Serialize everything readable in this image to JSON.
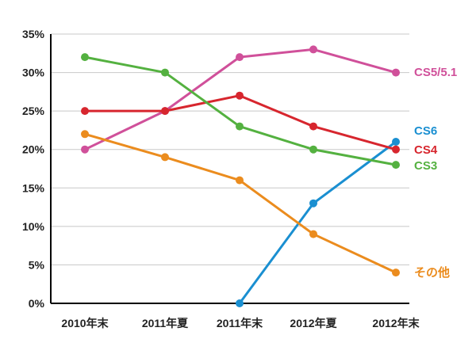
{
  "chart_data": {
    "type": "line",
    "categories": [
      "2010年末",
      "2011年夏",
      "2011年末",
      "2012年夏",
      "2012年末"
    ],
    "ylim": [
      0,
      35
    ],
    "yticks": [
      0,
      5,
      10,
      15,
      20,
      25,
      30,
      35
    ],
    "ytick_labels": [
      "0%",
      "5%",
      "10%",
      "15%",
      "20%",
      "25%",
      "30%",
      "35%"
    ],
    "grid": true,
    "legend": "inline at line ends (right)",
    "series": [
      {
        "name": "CS5/5.1",
        "color": "#d0509a",
        "values": [
          20,
          25,
          32,
          33,
          30
        ]
      },
      {
        "name": "CS6",
        "color": "#1a8fd1",
        "values": [
          null,
          null,
          0,
          13,
          21
        ]
      },
      {
        "name": "CS4",
        "color": "#d7262e",
        "values": [
          25,
          25,
          27,
          23,
          20
        ]
      },
      {
        "name": "CS3",
        "color": "#54b140",
        "values": [
          32,
          30,
          23,
          20,
          18
        ]
      },
      {
        "name": "その他",
        "color": "#eb8c1e",
        "values": [
          22,
          19,
          16,
          9,
          4
        ]
      }
    ]
  }
}
